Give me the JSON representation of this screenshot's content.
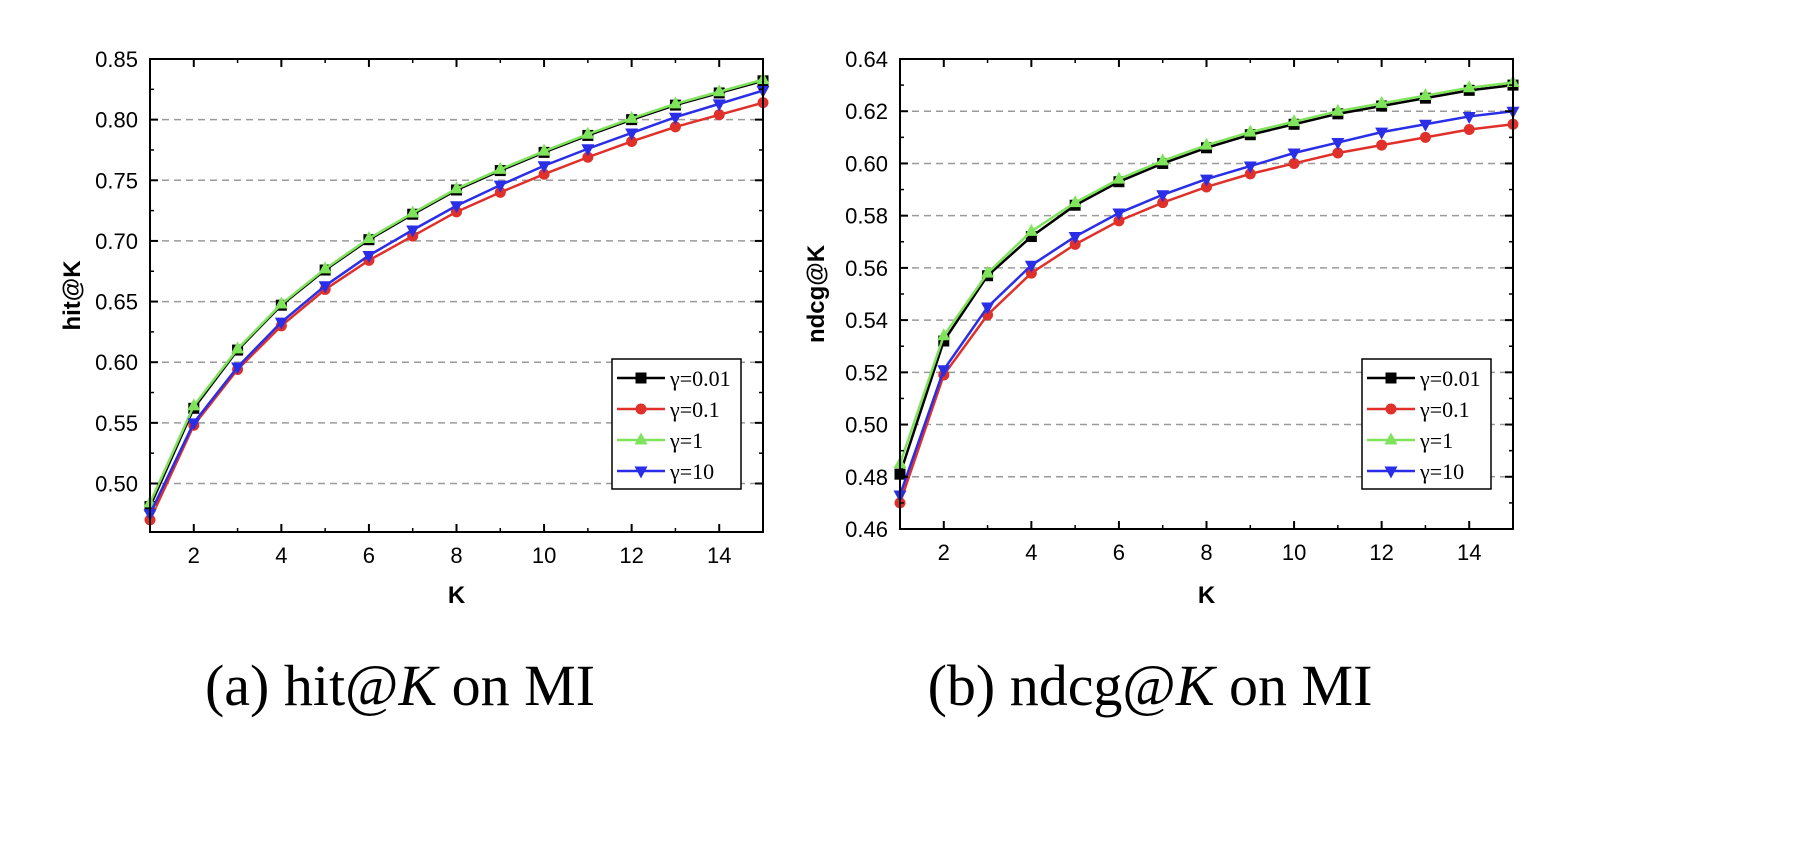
{
  "chart_data": [
    {
      "type": "line",
      "caption": {
        "prefix": "(a) hit@",
        "var": "K",
        "suffix": " on MI"
      },
      "xlabel": "K",
      "ylabel": "hit@K",
      "xlim": [
        1,
        15
      ],
      "ylim": [
        0.46,
        0.85
      ],
      "xticks": [
        2,
        4,
        6,
        8,
        10,
        12,
        14
      ],
      "yticks": [
        0.5,
        0.55,
        0.6,
        0.65,
        0.7,
        0.75,
        0.8,
        0.85
      ],
      "ytick_labels": [
        "0.50",
        "0.55",
        "0.60",
        "0.65",
        "0.70",
        "0.75",
        "0.80",
        "0.85"
      ],
      "grid": "horizontal-dashed",
      "legend_position": "lower-right",
      "x": [
        1,
        2,
        3,
        4,
        5,
        6,
        7,
        8,
        9,
        10,
        11,
        12,
        13,
        14,
        15
      ],
      "series": [
        {
          "name": "γ=0.01",
          "color": "#000000",
          "marker": "square",
          "values": [
            0.481,
            0.562,
            0.61,
            0.647,
            0.676,
            0.701,
            0.722,
            0.742,
            0.758,
            0.773,
            0.787,
            0.8,
            0.812,
            0.822,
            0.832
          ]
        },
        {
          "name": "γ=0.1",
          "color": "#e0302a",
          "marker": "circle",
          "values": [
            0.47,
            0.548,
            0.594,
            0.63,
            0.66,
            0.684,
            0.704,
            0.724,
            0.74,
            0.755,
            0.769,
            0.782,
            0.794,
            0.804,
            0.814
          ]
        },
        {
          "name": "γ=1",
          "color": "#7fe35c",
          "marker": "triangle-up",
          "values": [
            0.484,
            0.564,
            0.611,
            0.648,
            0.677,
            0.702,
            0.723,
            0.743,
            0.759,
            0.774,
            0.788,
            0.801,
            0.813,
            0.823,
            0.833
          ]
        },
        {
          "name": "γ=10",
          "color": "#2a2ee6",
          "marker": "triangle-down",
          "values": [
            0.475,
            0.55,
            0.596,
            0.633,
            0.663,
            0.688,
            0.709,
            0.729,
            0.746,
            0.762,
            0.776,
            0.789,
            0.802,
            0.813,
            0.824
          ]
        }
      ]
    },
    {
      "type": "line",
      "caption": {
        "prefix": "(b) ndcg@",
        "var": "K",
        "suffix": " on MI"
      },
      "xlabel": "K",
      "ylabel": "ndcg@K",
      "xlim": [
        1,
        15
      ],
      "ylim": [
        0.46,
        0.64
      ],
      "xticks": [
        2,
        4,
        6,
        8,
        10,
        12,
        14
      ],
      "yticks": [
        0.46,
        0.48,
        0.5,
        0.52,
        0.54,
        0.56,
        0.58,
        0.6,
        0.62,
        0.64
      ],
      "ytick_labels": [
        "0.46",
        "0.48",
        "0.50",
        "0.52",
        "0.54",
        "0.56",
        "0.58",
        "0.60",
        "0.62",
        "0.64"
      ],
      "grid": "horizontal-dashed",
      "legend_position": "lower-right",
      "x": [
        1,
        2,
        3,
        4,
        5,
        6,
        7,
        8,
        9,
        10,
        11,
        12,
        13,
        14,
        15
      ],
      "series": [
        {
          "name": "γ=0.01",
          "color": "#000000",
          "marker": "square",
          "values": [
            0.481,
            0.532,
            0.557,
            0.572,
            0.584,
            0.593,
            0.6,
            0.606,
            0.611,
            0.615,
            0.619,
            0.622,
            0.625,
            0.628,
            0.63
          ]
        },
        {
          "name": "γ=0.1",
          "color": "#e0302a",
          "marker": "circle",
          "values": [
            0.47,
            0.519,
            0.542,
            0.558,
            0.569,
            0.578,
            0.585,
            0.591,
            0.596,
            0.6,
            0.604,
            0.607,
            0.61,
            0.613,
            0.615
          ]
        },
        {
          "name": "γ=1",
          "color": "#7fe35c",
          "marker": "triangle-up",
          "values": [
            0.485,
            0.534,
            0.558,
            0.574,
            0.585,
            0.594,
            0.601,
            0.607,
            0.612,
            0.616,
            0.62,
            0.623,
            0.626,
            0.629,
            0.631
          ]
        },
        {
          "name": "γ=10",
          "color": "#2a2ee6",
          "marker": "triangle-down",
          "values": [
            0.473,
            0.521,
            0.545,
            0.561,
            0.572,
            0.581,
            0.588,
            0.594,
            0.599,
            0.604,
            0.608,
            0.612,
            0.615,
            0.618,
            0.62
          ]
        }
      ]
    }
  ]
}
